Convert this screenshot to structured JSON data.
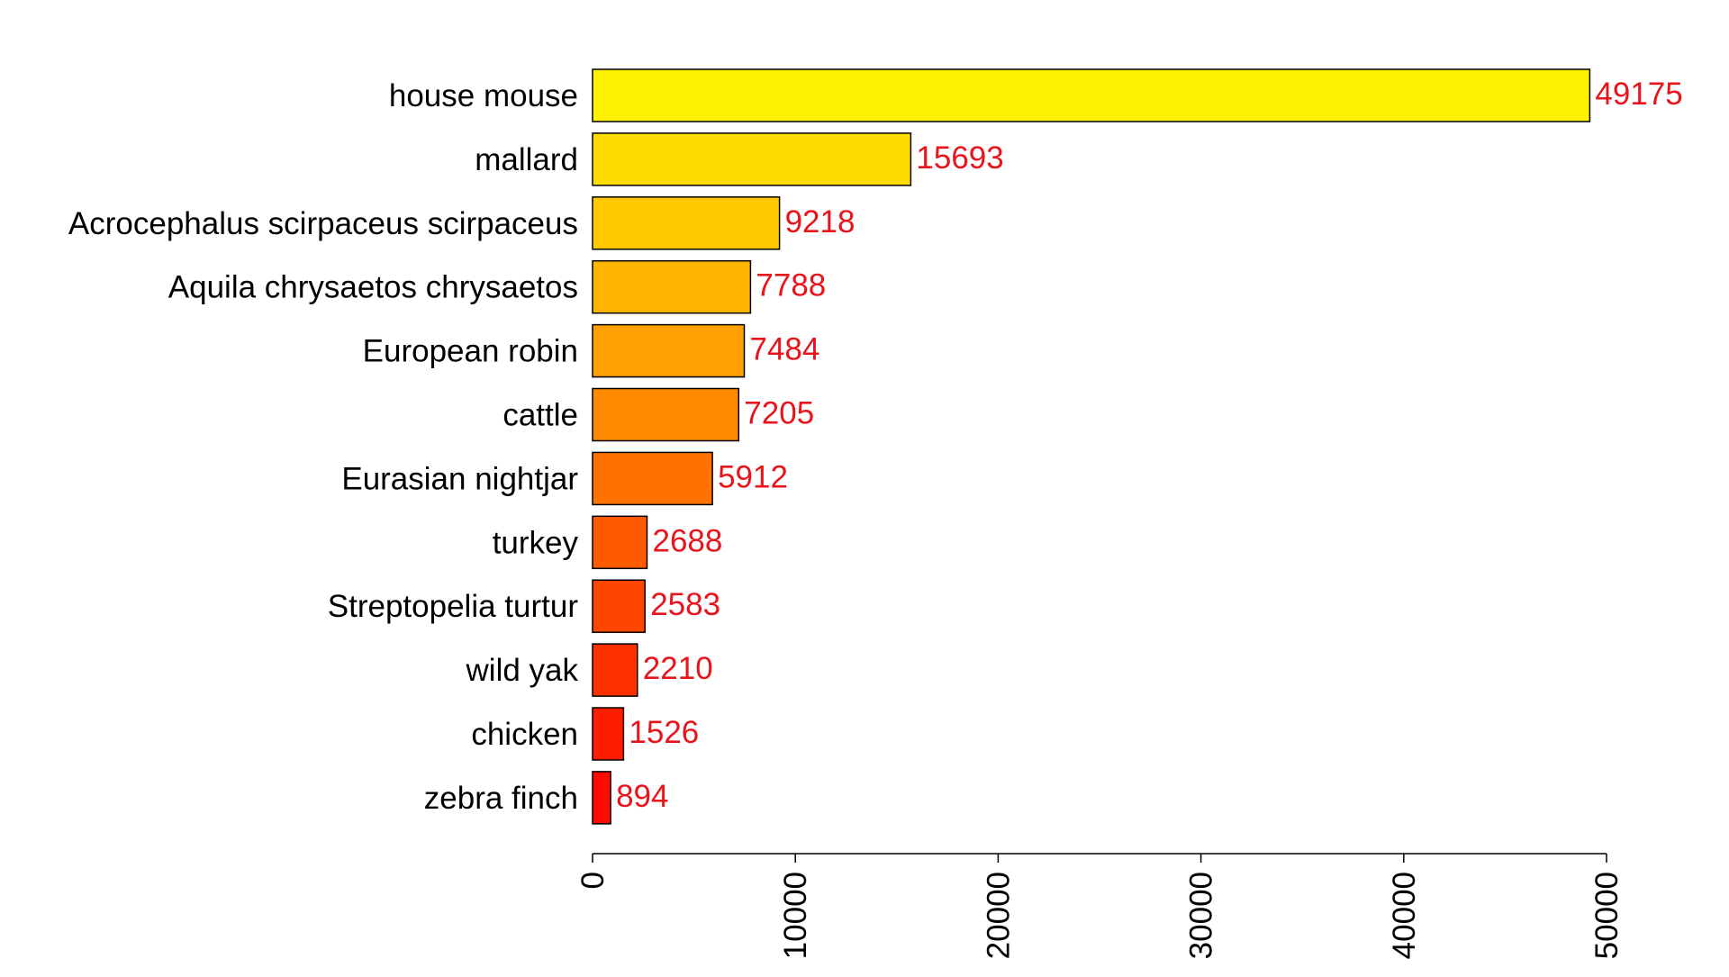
{
  "chart_data": {
    "type": "bar",
    "orientation": "horizontal",
    "title": "",
    "xlabel": "",
    "ylabel": "",
    "categories": [
      "house mouse",
      "mallard",
      "Acrocephalus scirpaceus scirpaceus",
      "Aquila chrysaetos chrysaetos",
      "European robin",
      "cattle",
      "Eurasian nightjar",
      "turkey",
      "Streptopelia turtur",
      "wild yak",
      "chicken",
      "zebra finch"
    ],
    "values": [
      49175,
      15693,
      9218,
      7788,
      7484,
      7205,
      5912,
      2688,
      2583,
      2210,
      1526,
      894
    ],
    "value_labels": [
      "49175",
      "15693",
      "9218",
      "7788",
      "7484",
      "7205",
      "5912",
      "2688",
      "2583",
      "2210",
      "1526",
      "894"
    ],
    "bar_colors": [
      "#FFF200",
      "#FFDC00",
      "#FFC800",
      "#FFB400",
      "#FF9F00",
      "#FF8A00",
      "#FF7200",
      "#FF5A00",
      "#FF4600",
      "#FF3000",
      "#FF1C00",
      "#FF0A00"
    ],
    "value_label_color": "#E8141B",
    "xlim": [
      0,
      50000
    ],
    "xticks": [
      0,
      10000,
      20000,
      30000,
      40000,
      50000
    ],
    "xtick_labels": [
      "0",
      "10000",
      "20000",
      "30000",
      "40000",
      "50000"
    ],
    "grid": false,
    "legend": "none"
  }
}
